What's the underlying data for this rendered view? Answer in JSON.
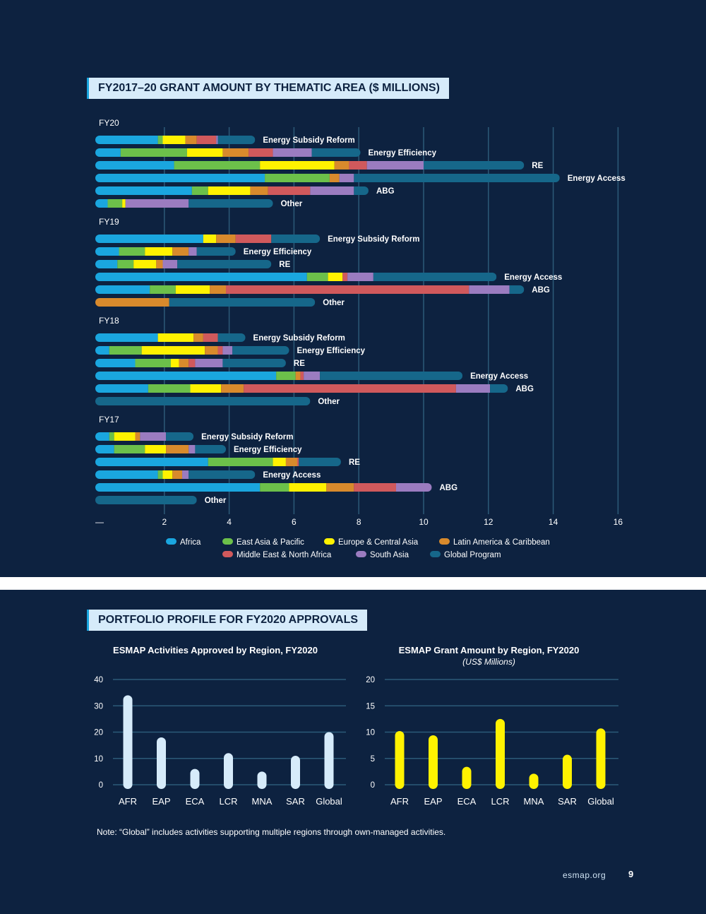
{
  "section1_title": "FY2017–20 GRANT AMOUNT BY THEMATIC AREA ($ MILLIONS)",
  "section2_title": "PORTFOLIO PROFILE FOR FY2020 APPROVALS",
  "note": "Note: “Global” includes activities supporting multiple regions through own-managed activities.",
  "footer": {
    "site": "esmap.org",
    "page": "9"
  },
  "chart_data": [
    {
      "type": "bar",
      "orientation": "horizontal",
      "stacked": true,
      "title": "",
      "xlim": [
        0,
        16
      ],
      "x_ticks": [
        "—",
        "2",
        "4",
        "6",
        "8",
        "10",
        "12",
        "14",
        "16"
      ],
      "grid": true,
      "legend_position": "bottom",
      "series_names": [
        "Africa",
        "East Asia & Pacific",
        "Europe & Central Asia",
        "Latin America & Caribbean",
        "Middle East & North Africa",
        "South Asia",
        "Global Program"
      ],
      "series_colors": [
        "#1aa6df",
        "#6cc04a",
        "#fff200",
        "#d88a2c",
        "#d0595c",
        "#9b7cc0",
        "#16678a"
      ],
      "groups": [
        {
          "label": "FY20",
          "bars": [
            {
              "category": "Energy Subsidy Reform",
              "values": [
                1.8,
                0.15,
                0.7,
                0.35,
                0.6,
                0.05,
                1.15
              ]
            },
            {
              "category": "Energy Efficiency",
              "values": [
                0.65,
                2.05,
                1.1,
                0.8,
                0.75,
                1.2,
                1.5
              ]
            },
            {
              "category": "RE",
              "values": [
                2.3,
                2.65,
                2.3,
                0.45,
                0.55,
                1.75,
                3.1
              ]
            },
            {
              "category": "Energy Access",
              "values": [
                5.1,
                2.0,
                0.0,
                0.3,
                0.0,
                0.45,
                6.35
              ]
            },
            {
              "category": "ABG",
              "values": [
                2.85,
                0.5,
                1.3,
                0.55,
                1.3,
                1.35,
                0.45
              ]
            },
            {
              "category": "Other",
              "values": [
                0.25,
                0.45,
                0.1,
                0.0,
                0.0,
                1.95,
                2.6
              ]
            }
          ]
        },
        {
          "label": "FY19",
          "bars": [
            {
              "category": "Energy Subsidy Reform",
              "values": [
                3.2,
                0.0,
                0.4,
                0.6,
                1.1,
                0.0,
                1.5
              ]
            },
            {
              "category": "Energy Efficiency",
              "values": [
                0.6,
                0.8,
                0.85,
                0.5,
                0.0,
                0.25,
                1.2
              ]
            },
            {
              "category": "RE",
              "values": [
                0.55,
                0.5,
                0.7,
                0.2,
                0.0,
                0.45,
                2.9
              ]
            },
            {
              "category": "Energy Access",
              "values": [
                6.4,
                0.65,
                0.45,
                0.0,
                0.15,
                0.8,
                3.8
              ]
            },
            {
              "category": "ABG",
              "values": [
                1.55,
                0.8,
                1.05,
                0.5,
                7.5,
                1.25,
                0.45
              ]
            },
            {
              "category": "Other",
              "values": [
                0.0,
                0.0,
                0.0,
                2.15,
                0.0,
                0.0,
                4.5
              ]
            }
          ]
        },
        {
          "label": "FY18",
          "bars": [
            {
              "category": "Energy Subsidy Reform",
              "values": [
                1.8,
                0.0,
                1.1,
                0.3,
                0.45,
                0.0,
                0.85
              ]
            },
            {
              "category": "Energy Efficiency",
              "values": [
                0.3,
                1.0,
                1.95,
                0.4,
                0.15,
                0.3,
                1.75
              ]
            },
            {
              "category": "RE",
              "values": [
                1.1,
                1.1,
                0.25,
                0.3,
                0.2,
                0.85,
                1.95
              ]
            },
            {
              "category": "Energy Access",
              "values": [
                5.45,
                0.6,
                0.0,
                0.15,
                0.1,
                0.5,
                4.4
              ]
            },
            {
              "category": "ABG",
              "values": [
                1.5,
                1.3,
                0.95,
                0.7,
                6.55,
                1.05,
                0.55
              ]
            },
            {
              "category": "Other",
              "values": [
                0.0,
                0.0,
                0.0,
                0.0,
                0.0,
                0.0,
                6.5
              ]
            }
          ]
        },
        {
          "label": "FY17",
          "bars": [
            {
              "category": "Energy Subsidy Reform",
              "values": [
                0.3,
                0.15,
                0.65,
                0.15,
                0.0,
                0.8,
                0.85
              ]
            },
            {
              "category": "Energy Efficiency",
              "values": [
                0.45,
                0.95,
                0.65,
                0.7,
                0.0,
                0.2,
                0.95
              ]
            },
            {
              "category": "RE",
              "values": [
                3.35,
                2.0,
                0.4,
                0.35,
                0.05,
                0.0,
                1.3
              ]
            },
            {
              "category": "Energy Access",
              "values": [
                1.8,
                0.15,
                0.3,
                0.3,
                0.0,
                0.2,
                2.05
              ]
            },
            {
              "category": "ABG",
              "values": [
                4.95,
                0.9,
                1.15,
                0.85,
                1.3,
                1.1,
                0.0
              ]
            },
            {
              "category": "Other",
              "values": [
                0.0,
                0.0,
                0.0,
                0.0,
                0.0,
                0.0,
                3.0
              ]
            }
          ]
        }
      ]
    },
    {
      "type": "bar",
      "title": "ESMAP Activities Approved by Region, FY2020",
      "subtitle": "",
      "categories": [
        "AFR",
        "EAP",
        "ECA",
        "LCR",
        "MNA",
        "SAR",
        "Global"
      ],
      "values": [
        34,
        18,
        6,
        12,
        5,
        11,
        20
      ],
      "ylim": [
        0,
        40
      ],
      "y_ticks": [
        "0",
        "10",
        "20",
        "30",
        "40"
      ],
      "color": "#d6ebfa",
      "grid": true
    },
    {
      "type": "bar",
      "title": "ESMAP Grant Amount by Region, FY2020",
      "subtitle": "(US$ Millions)",
      "categories": [
        "AFR",
        "EAP",
        "ECA",
        "LCR",
        "MNA",
        "SAR",
        "Global"
      ],
      "values": [
        10.2,
        9.4,
        3.4,
        12.5,
        2.1,
        5.7,
        10.7
      ],
      "ylim": [
        0,
        20
      ],
      "y_ticks": [
        "0",
        "5",
        "10",
        "15",
        "20"
      ],
      "color": "#fff200",
      "grid": true
    }
  ]
}
